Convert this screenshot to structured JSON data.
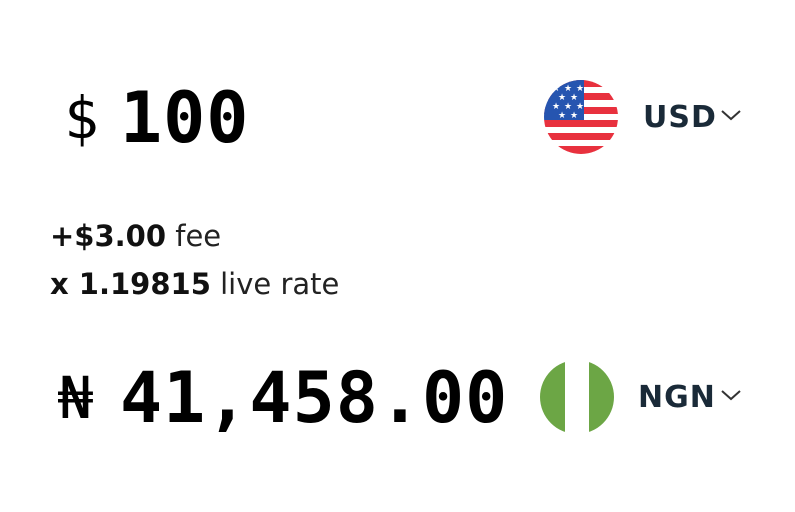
{
  "send": {
    "symbol": "$",
    "amount": "100",
    "currency_code": "USD",
    "flag": "us-flag-icon"
  },
  "fees": {
    "fee_amount": "+$3.00",
    "fee_label": "fee",
    "rate_value": "x 1.19815",
    "rate_label": "live rate"
  },
  "receive": {
    "symbol": "₦",
    "amount": "41,458.00",
    "currency_code": "NGN",
    "flag": "ng-flag-icon"
  },
  "colors": {
    "us_red": "#e8313e",
    "us_blue": "#2655b0",
    "ng_green": "#6ca645",
    "currency_code": "#1a2a38"
  }
}
